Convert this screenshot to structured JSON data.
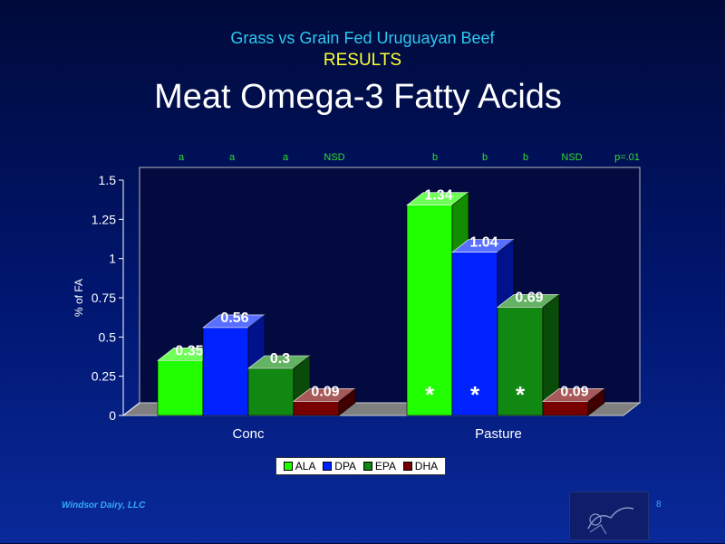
{
  "header": {
    "subtitle": "Grass vs Grain Fed Uruguayan Beef",
    "section": "RESULTS",
    "title": "Meat Omega-3 Fatty Acids"
  },
  "footer": {
    "company": "Windsor Dairy, LLC",
    "page": "8"
  },
  "chart_data": {
    "type": "bar",
    "categories": [
      "Conc",
      "Pasture"
    ],
    "series": [
      {
        "name": "ALA",
        "values": [
          0.35,
          1.34
        ],
        "color": "#22ff00"
      },
      {
        "name": "DPA",
        "values": [
          0.56,
          1.04
        ],
        "color": "#0022ff"
      },
      {
        "name": "EPA",
        "values": [
          0.3,
          0.69
        ],
        "color": "#118811"
      },
      {
        "name": "DHA",
        "values": [
          0.09,
          0.09
        ],
        "color": "#770000"
      }
    ],
    "ylabel": "% of FA",
    "xlabel": "",
    "ylim": [
      0,
      1.5
    ],
    "yticks": [
      "0",
      "0.25",
      "0.5",
      "0.75",
      "1",
      "1.25",
      "1.5"
    ],
    "data_labels": [
      [
        "0.35",
        "0.56",
        "0.3",
        "0.09"
      ],
      [
        "1.34",
        "1.04",
        "0.69",
        "0.09"
      ]
    ],
    "significance_letters": [
      [
        "a",
        "a",
        "a",
        "NSD"
      ],
      [
        "b",
        "b",
        "b",
        "NSD"
      ]
    ],
    "p_value": "p=.01",
    "asterisks": [
      [
        false,
        false,
        false,
        false
      ],
      [
        true,
        true,
        true,
        false
      ]
    ],
    "asterisk_symbol": "*",
    "legend_position": "bottom",
    "grid": false,
    "style": "3d"
  }
}
